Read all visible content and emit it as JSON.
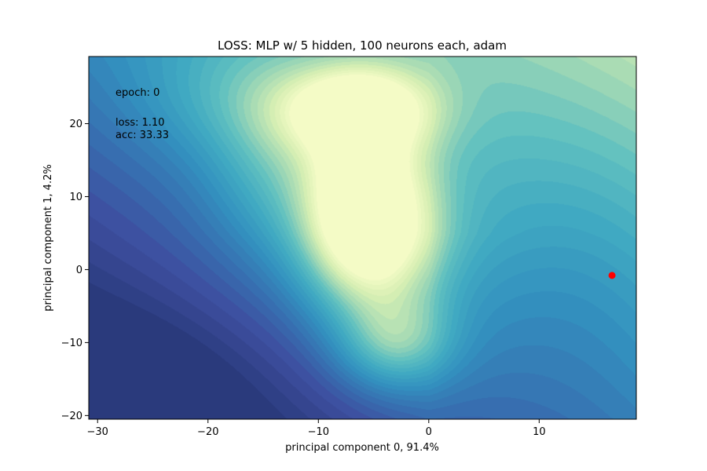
{
  "chart_data": {
    "type": "heatmap",
    "title": "LOSS: MLP w/ 5 hidden, 100 neurons each, adam",
    "xlabel": "principal component 0, 91.4%",
    "ylabel": "principal component 1, 4.2%",
    "xlim": [
      -30.8,
      18.8
    ],
    "ylim": [
      -20.5,
      29.2
    ],
    "xticks": [
      -30,
      -20,
      -10,
      0,
      10
    ],
    "yticks": [
      -20,
      -10,
      0,
      10,
      20
    ],
    "grid": false,
    "colormap": "YlGnBu_r",
    "colormap_stops": [
      "#2a3a7c",
      "#3e4fa0",
      "#3673b2",
      "#3391bf",
      "#40a9c2",
      "#5fc0c0",
      "#a3d9b4",
      "#d7efb3",
      "#f4fbc6"
    ],
    "annotations": {
      "epoch": "epoch: 0",
      "loss": "loss:  1.10",
      "acc": "acc:  33.33"
    },
    "point": {
      "x": 16.6,
      "y": -0.8,
      "color": "#ff0000"
    }
  }
}
